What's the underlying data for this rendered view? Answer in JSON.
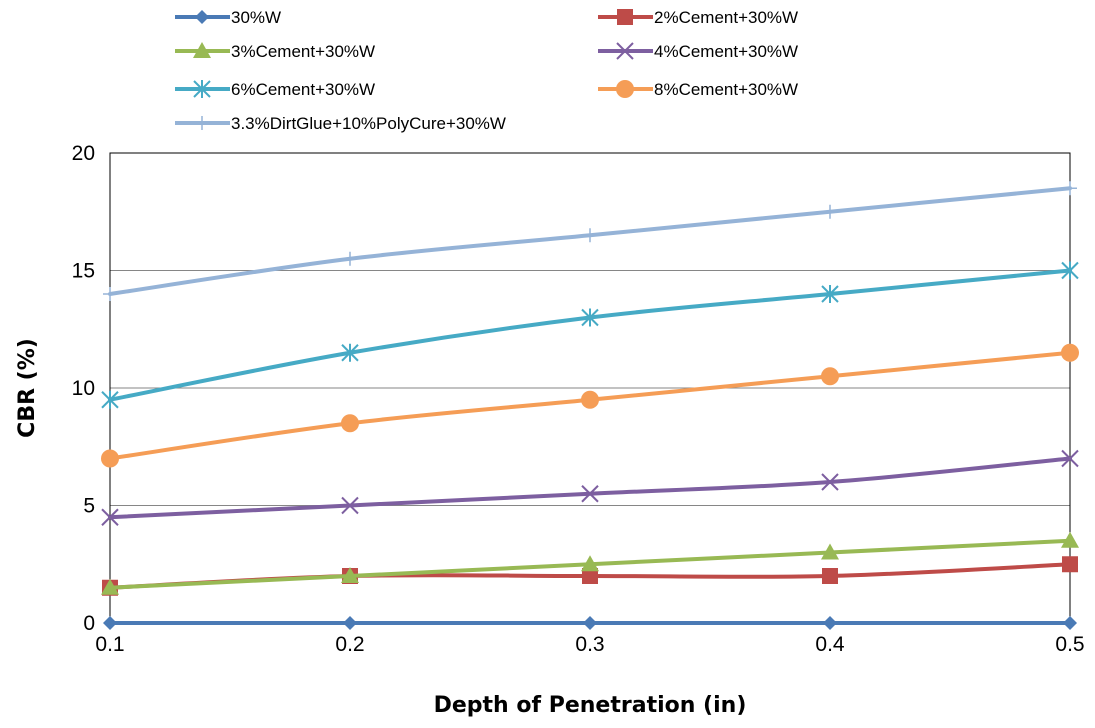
{
  "chart_data": {
    "type": "line",
    "title": "",
    "xlabel": "Depth of Penetration (in)",
    "ylabel": "CBR (%)",
    "x": [
      0.1,
      0.2,
      0.3,
      0.4,
      0.5
    ],
    "x_tick_labels": [
      "0.1",
      "0.2",
      "0.3",
      "0.4",
      "0.5"
    ],
    "y_tick_labels": [
      "0",
      "5",
      "10",
      "15",
      "20"
    ],
    "xlim": [
      0.1,
      0.5
    ],
    "ylim": [
      0,
      20
    ],
    "y_ticks": [
      0,
      5,
      10,
      15,
      20
    ],
    "grid": "horizontal",
    "legend_position": "top",
    "series": [
      {
        "name": "30%W",
        "color": "#4a7ab5",
        "marker": "diamond",
        "values": [
          0,
          0,
          0,
          0,
          0
        ]
      },
      {
        "name": "2%Cement+30%W",
        "color": "#be4b48",
        "marker": "square",
        "values": [
          1.5,
          2,
          2,
          2,
          2.5
        ]
      },
      {
        "name": "3%Cement+30%W",
        "color": "#98b954",
        "marker": "triangle",
        "values": [
          1.5,
          2,
          2.5,
          3,
          3.5
        ]
      },
      {
        "name": "4%Cement+30%W",
        "color": "#7d5fa0",
        "marker": "x",
        "values": [
          4.5,
          5,
          5.5,
          6,
          7
        ]
      },
      {
        "name": "6%Cement+30%W",
        "color": "#46aac5",
        "marker": "star",
        "values": [
          9.5,
          11.5,
          13,
          14,
          15
        ]
      },
      {
        "name": "8%Cement+30%W",
        "color": "#f59d56",
        "marker": "circle",
        "values": [
          7,
          8.5,
          9.5,
          10.5,
          11.5
        ]
      },
      {
        "name": "3.3%DirtGlue+10%PolyCure+30%W",
        "color": "#95b3d7",
        "marker": "plus",
        "values": [
          14,
          15.5,
          16.5,
          17.5,
          18.5
        ]
      }
    ]
  }
}
